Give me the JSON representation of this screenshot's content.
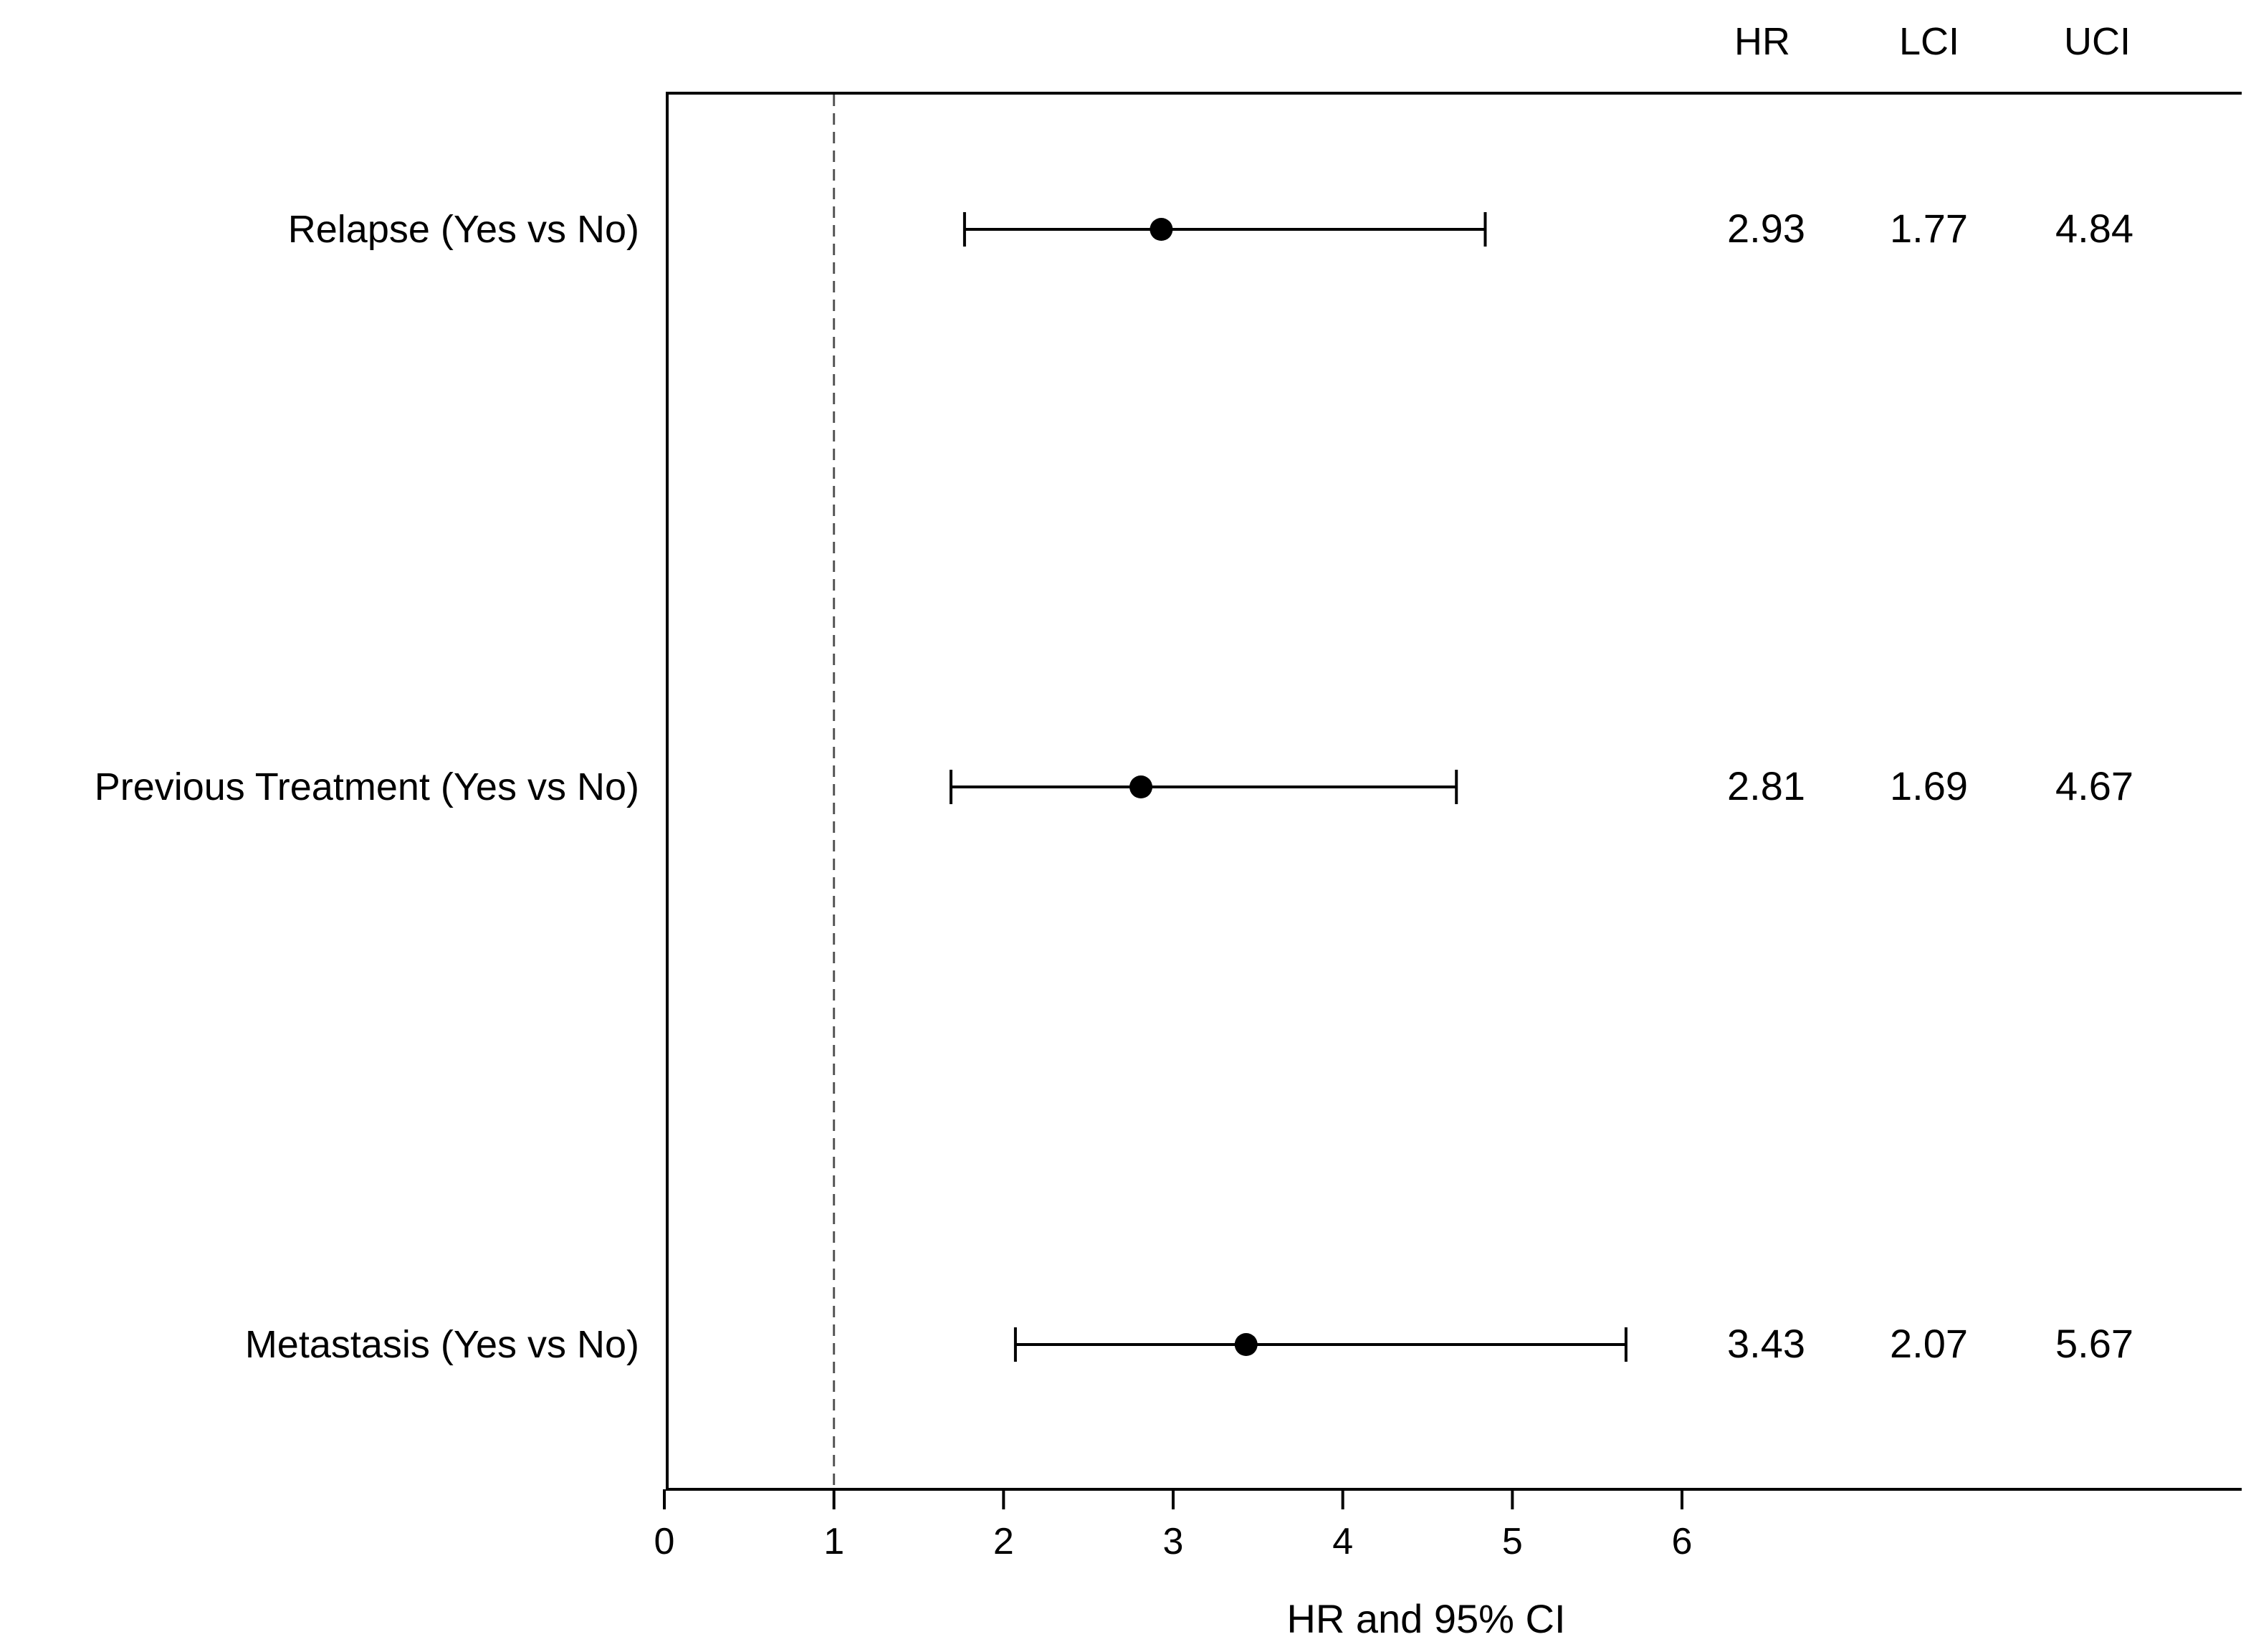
{
  "chart_data": {
    "type": "forest",
    "xlabel": "HR and 95% CI",
    "xlim": [
      0,
      6
    ],
    "x_ticks": [
      "0",
      "1",
      "2",
      "3",
      "4",
      "5",
      "6"
    ],
    "reference_line": 1,
    "table_headers": [
      "HR",
      "LCI",
      "UCI"
    ],
    "rows": [
      {
        "label": "Relapse (Yes vs No)",
        "hr": 2.93,
        "lci": 1.77,
        "uci": 4.84,
        "hr_text": "2.93",
        "lci_text": "1.77",
        "uci_text": "4.84"
      },
      {
        "label": "Previous Treatment (Yes vs No)",
        "hr": 2.81,
        "lci": 1.69,
        "uci": 4.67,
        "hr_text": "2.81",
        "lci_text": "1.69",
        "uci_text": "4.67"
      },
      {
        "label": "Metastasis (Yes vs No)",
        "hr": 3.43,
        "lci": 2.07,
        "uci": 5.67,
        "hr_text": "3.43",
        "lci_text": "2.07",
        "uci_text": "5.67"
      }
    ],
    "colors": {
      "marks": "#000000",
      "reference_line": "#555555"
    }
  }
}
